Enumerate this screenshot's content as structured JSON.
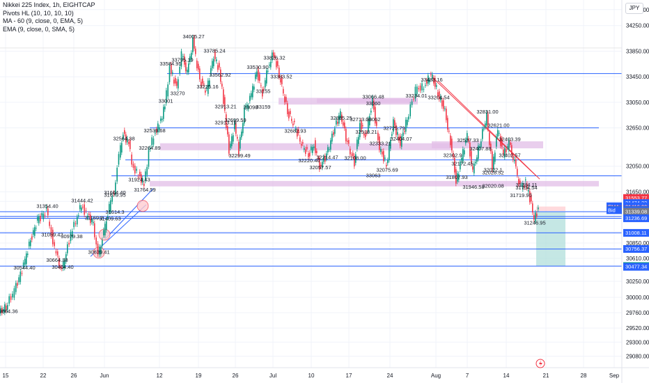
{
  "legend": {
    "title": "Nikkei 225 Index, 1h, EIGHTCAP",
    "pivots": "Pivots HL (10, 10, 10, 10)",
    "ma": "MA - 60 (9, close, 0, EMA, 5)",
    "ema": "EMA (9, close, 0, SMA, 5)"
  },
  "currency_label": "JPY",
  "chart_data": {
    "type": "line",
    "title": "Nikkei 225 Index, 1h, EIGHTCAP",
    "series": [
      {
        "values": [
          [
            0,
            29750
          ],
          [
            10,
            29864
          ],
          [
            22,
            30100
          ],
          [
            35,
            30500
          ],
          [
            45,
            30900
          ],
          [
            55,
            31200
          ],
          [
            68,
            31354
          ],
          [
            75,
            31000
          ],
          [
            82,
            30664
          ],
          [
            90,
            30404
          ],
          [
            96,
            30700
          ],
          [
            103,
            30979
          ],
          [
            110,
            31200
          ],
          [
            118,
            31444
          ],
          [
            125,
            31300
          ],
          [
            135,
            31169
          ],
          [
            142,
            30639
          ],
          [
            150,
            31000
          ],
          [
            158,
            31400
          ],
          [
            165,
            31664
          ],
          [
            172,
            32200
          ],
          [
            178,
            32564
          ],
          [
            186,
            32400
          ],
          [
            193,
            32000
          ],
          [
            200,
            31924
          ],
          [
            208,
            31764
          ],
          [
            215,
            32264
          ],
          [
            222,
            32539
          ],
          [
            230,
            32699
          ],
          [
            238,
            33000
          ],
          [
            245,
            33584
          ],
          [
            255,
            33270
          ],
          [
            262,
            33795
          ],
          [
            270,
            33500
          ],
          [
            278,
            34005
          ],
          [
            288,
            33400
          ],
          [
            298,
            33225
          ],
          [
            308,
            33785
          ],
          [
            316,
            33562
          ],
          [
            324,
            32913
          ],
          [
            330,
            32279
          ],
          [
            338,
            32700
          ],
          [
            344,
            32299
          ],
          [
            352,
            32913
          ],
          [
            360,
            33095
          ],
          [
            370,
            33530
          ],
          [
            378,
            33200
          ],
          [
            386,
            33600
          ],
          [
            394,
            33826
          ],
          [
            404,
            33383
          ],
          [
            414,
            32900
          ],
          [
            424,
            32682
          ],
          [
            434,
            32400
          ],
          [
            444,
            32220
          ],
          [
            452,
            32400
          ],
          [
            460,
            32057
          ],
          [
            470,
            32214
          ],
          [
            480,
            32600
          ],
          [
            490,
            32885
          ],
          [
            500,
            32402
          ],
          [
            510,
            32108
          ],
          [
            518,
            32713
          ],
          [
            526,
            32518
          ],
          [
            536,
            33066
          ],
          [
            546,
            32333
          ],
          [
            556,
            32075
          ],
          [
            566,
            32725
          ],
          [
            576,
            32404
          ],
          [
            586,
            32800
          ],
          [
            598,
            33234
          ],
          [
            610,
            33301
          ],
          [
            620,
            33483
          ],
          [
            630,
            33204
          ],
          [
            640,
            32900
          ],
          [
            650,
            32302
          ],
          [
            656,
            31807
          ],
          [
            664,
            32172
          ],
          [
            672,
            32537
          ],
          [
            680,
            31946
          ],
          [
            690,
            32407
          ],
          [
            700,
            32831
          ],
          [
            708,
            32022
          ],
          [
            716,
            32621
          ],
          [
            724,
            32228
          ],
          [
            732,
            32403
          ],
          [
            740,
            32100
          ],
          [
            748,
            31719
          ],
          [
            756,
            31794
          ],
          [
            762,
            31546
          ],
          [
            768,
            31246
          ],
          [
            774,
            31365
          ]
        ]
      }
    ],
    "ylim": [
      28900,
      34650
    ],
    "ticks_y": [
      29080,
      29300,
      29520,
      29760,
      30000,
      30250,
      30480,
      30610,
      30850,
      31030,
      31270,
      31500,
      31650,
      32050,
      32650,
      33050,
      33450,
      33850,
      34250,
      34500
    ],
    "ticks_y_labels": [
      "29080.00",
      "29300.00",
      "29520.00",
      "29760.00",
      "30000.00",
      "30250.00",
      "30480.00",
      "30610.00",
      "30850.00",
      "31030.00",
      "31270.00",
      "31500.00",
      "31650.00",
      "32050.00",
      "32650.00",
      "33050.00",
      "33450.00",
      "33850.00",
      "34250.00",
      "34500.00"
    ],
    "ticks_x": [
      "15",
      "22",
      "26",
      "Jun",
      "12",
      "19",
      "26",
      "Jul",
      "10",
      "17",
      "24",
      "Aug",
      "7",
      "14",
      "21",
      "28",
      "Sep"
    ],
    "pivot_labels": [
      "34005.27",
      "33795.19",
      "33785.24",
      "33826.32",
      "33584.95",
      "33562.92",
      "33530.90",
      "33483.16",
      "33383.52",
      "33270",
      "33225.16",
      "33234.01",
      "33066.48",
      "33204.54",
      "32913.21",
      "32885.25",
      "32831.00",
      "32913.19",
      "32713.00",
      "32725.79",
      "32699.59",
      "32682.93",
      "32621.00",
      "32564.38",
      "32539.68",
      "32537.33",
      "32518.21",
      "32407.88",
      "32403.39",
      "32402.57",
      "32404.07",
      "32302.9",
      "32333.21",
      "32299.49",
      "32264.89",
      "32220.40",
      "32214.47",
      "32172.45",
      "32108.00",
      "32075.69",
      "32057.57",
      "32028.52",
      "32022.1",
      "32020.08",
      "31946.58",
      "31924.43",
      "31807.93",
      "31794.54",
      "31784.11",
      "31764.59",
      "31719.90",
      "31679.95",
      "31664.40",
      "31614.3",
      "31444.42",
      "31409.63",
      "31354.40",
      "31246.95",
      "31169.2",
      "31059.42",
      "30979.38",
      "30664.38",
      "30639.41",
      "30544.40",
      "30404.40",
      "29864.36",
      "33155",
      "33159",
      "33060",
      "33062",
      "33098",
      "33063",
      "33001"
    ],
    "price_badges": {
      "p1": "31553.77",
      "p2": "31474.33",
      "p3": "31424.01",
      "p4": "31416.00",
      "p5": "31370.30",
      "p6": "31365.80",
      "p7": "52:36",
      "p8": "31363.30",
      "p9": "31339.08",
      "p10": "31236.69",
      "p11": "31008.11",
      "p12": "30756.37",
      "p13": "30489.16",
      "p14": "30477.34"
    },
    "badge_tags": {
      "ma": "MA",
      "ema": "EMA",
      "ask": "Ask",
      "symbol": "JPN225",
      "bid": "Bid"
    },
    "series_colors": [
      "#089981",
      "#f23645"
    ]
  }
}
